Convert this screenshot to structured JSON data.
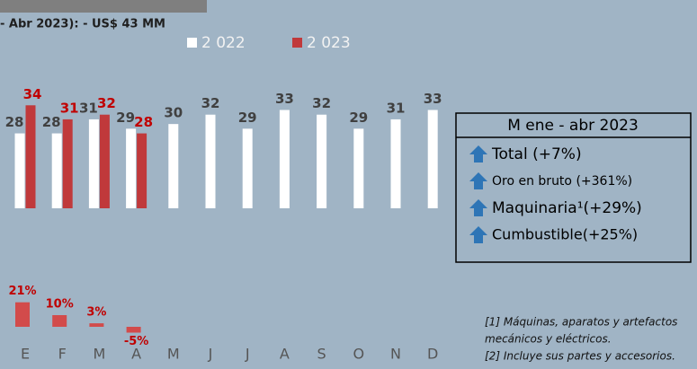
{
  "header": "- Abr 2023):  - US$ 43 MM",
  "chart_data": [
    {
      "type": "bar",
      "categories": [
        "E",
        "F",
        "M",
        "A",
        "M",
        "J",
        "J",
        "A",
        "S",
        "O",
        "N",
        "D"
      ],
      "series": [
        {
          "name": "2 022",
          "color": "#ffffff",
          "values": [
            28,
            28,
            31,
            29,
            30,
            32,
            29,
            33,
            32,
            29,
            31,
            33
          ]
        },
        {
          "name": "2 023",
          "color": "#c0393b",
          "values": [
            34,
            31,
            32,
            28,
            null,
            null,
            null,
            null,
            null,
            null,
            null,
            null
          ]
        }
      ],
      "ylim": [
        12,
        40
      ]
    },
    {
      "type": "bar",
      "values": [
        21,
        10,
        3,
        -5
      ],
      "value_labels": [
        "21%",
        "10%",
        "3%",
        "-5%"
      ],
      "color": "#d24b4b",
      "ylim": [
        -10,
        30
      ]
    }
  ],
  "summary": {
    "title": "M ene - abr 2023",
    "items": [
      "Total (+7%)",
      "Oro en bruto (+361%)",
      "Maquinaria¹(+29%)",
      "Cumbustible(+25%)"
    ]
  },
  "footnotes": [
    "[1] Máquinas, aparatos y artefactos",
    "mecánicos y eléctricos.",
    "[2] Incluye sus partes y accesorios."
  ]
}
